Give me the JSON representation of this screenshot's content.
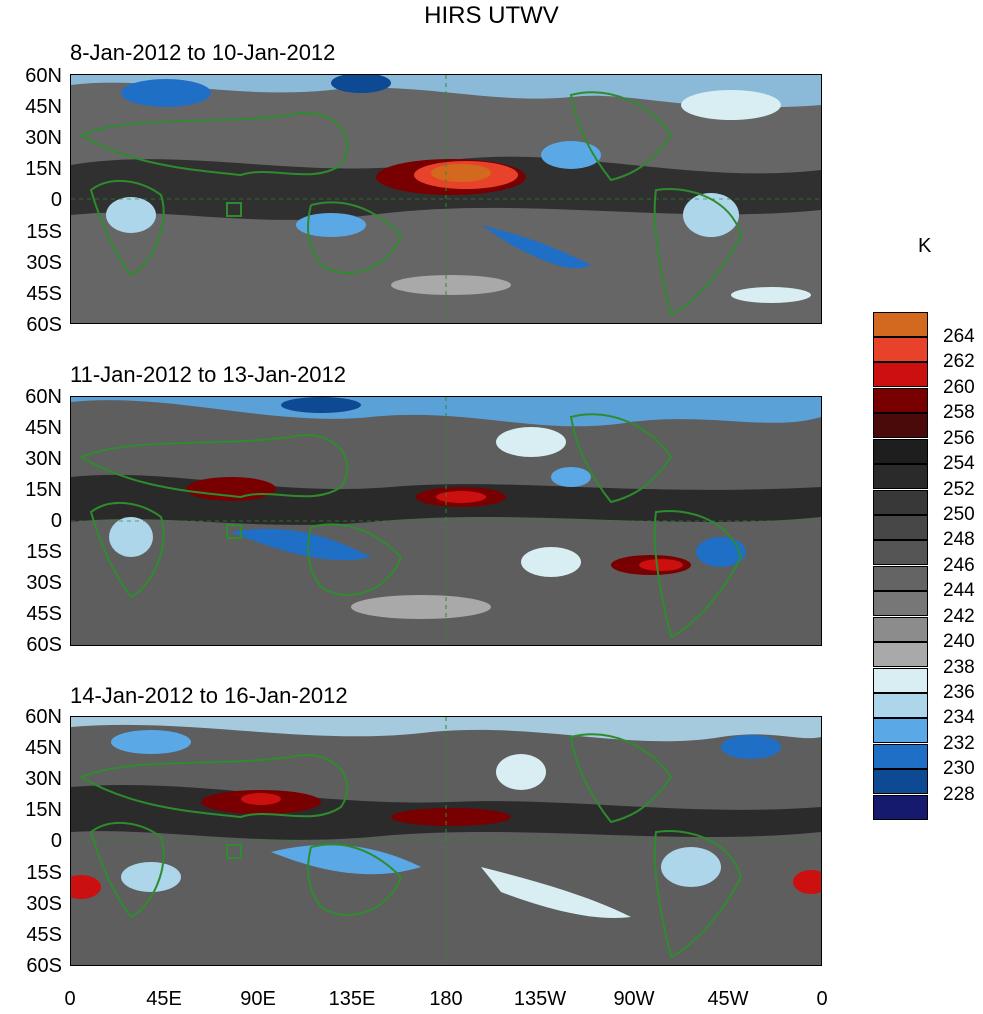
{
  "figure": {
    "title": "HIRS UTWV",
    "unit_label": "K"
  },
  "panels": [
    {
      "title": "8-Jan-2012 to 10-Jan-2012"
    },
    {
      "title": "11-Jan-2012 to 13-Jan-2012"
    },
    {
      "title": "14-Jan-2012 to 16-Jan-2012"
    }
  ],
  "axes": {
    "y_tick_labels": [
      "60N",
      "45N",
      "30N",
      "15N",
      "0",
      "15S",
      "30S",
      "45S",
      "60S"
    ],
    "x_tick_labels": [
      "0",
      "45E",
      "90E",
      "135E",
      "180",
      "135W",
      "90W",
      "45W",
      "0"
    ]
  },
  "colorbar": {
    "labels": [
      "264",
      "262",
      "260",
      "258",
      "256",
      "254",
      "252",
      "250",
      "248",
      "246",
      "244",
      "242",
      "240",
      "238",
      "236",
      "234",
      "232",
      "230",
      "228"
    ],
    "colors": [
      "#d2691e",
      "#e8432a",
      "#cc0f0f",
      "#780000",
      "#4a0a0a",
      "#1e1e1e",
      "#2a2a2a",
      "#383838",
      "#474747",
      "#555555",
      "#646464",
      "#777777",
      "#8c8c8c",
      "#a9a9a9",
      "#d8eef2",
      "#aed6eb",
      "#5aa9e6",
      "#1f6fc7",
      "#0d4a93",
      "#151a6e"
    ]
  },
  "style_colors": {
    "coastline": "#2e8b2e",
    "background_gray": "#5e5e5e"
  }
}
